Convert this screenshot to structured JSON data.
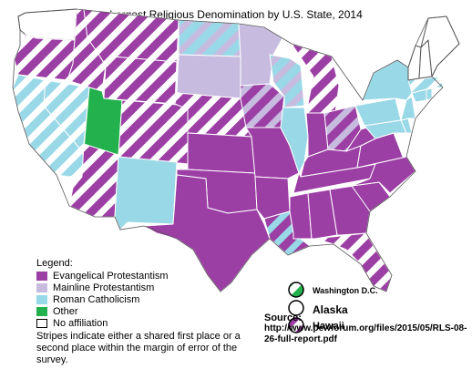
{
  "title": "Largest Religious Denomination by U.S. State, 2014",
  "colors": {
    "evangelical": "#9c3fa5",
    "mainline": "#c7bbe0",
    "catholic": "#99d8e7",
    "other": "#23b14d",
    "none": "#ffffff",
    "border": "#ffffff",
    "outline": "#555555"
  },
  "legend": {
    "heading": "Legend:",
    "items": [
      {
        "key": "evangelical",
        "label": "Evangelical Protestantism"
      },
      {
        "key": "mainline",
        "label": "Mainline Protestantism"
      },
      {
        "key": "catholic",
        "label": "Roman Catholicism"
      },
      {
        "key": "other",
        "label": "Other"
      },
      {
        "key": "none",
        "label": "No affiliation"
      }
    ]
  },
  "note": "Stripes indicate either a shared first place or a second place within the margin of error of the survey.",
  "insets": [
    {
      "label": "Washington D.C.",
      "fill": "other",
      "stripe": "none",
      "bold": true
    },
    {
      "label": "Alaska",
      "fill": "none",
      "stripe": null
    },
    {
      "label": "Hawaii",
      "fill": "evangelical",
      "stripe": "none"
    }
  ],
  "source": {
    "heading": "Source:",
    "url": "http://www.pewforum.org/files/2015/05/RLS-08-26-full-report.pdf"
  },
  "states": [
    {
      "name": "WA",
      "fill": "none",
      "stripe": null
    },
    {
      "name": "OR",
      "fill": "evangelical",
      "stripe": "none"
    },
    {
      "name": "CA",
      "fill": "catholic",
      "stripe": "none"
    },
    {
      "name": "NV",
      "fill": "catholic",
      "stripe": "none"
    },
    {
      "name": "ID",
      "fill": "evangelical",
      "stripe": "none"
    },
    {
      "name": "MT",
      "fill": "evangelical",
      "stripe": "none"
    },
    {
      "name": "WY",
      "fill": "evangelical",
      "stripe": "none"
    },
    {
      "name": "UT",
      "fill": "other",
      "stripe": null
    },
    {
      "name": "CO",
      "fill": "evangelical",
      "stripe": "none"
    },
    {
      "name": "AZ",
      "fill": "evangelical",
      "stripe": "none"
    },
    {
      "name": "NM",
      "fill": "catholic",
      "stripe": null
    },
    {
      "name": "ND",
      "fill": "catholic",
      "stripe": "mainline"
    },
    {
      "name": "SD",
      "fill": "mainline",
      "stripe": null
    },
    {
      "name": "NE",
      "fill": "evangelical",
      "stripe": "none"
    },
    {
      "name": "KS",
      "fill": "evangelical",
      "stripe": null
    },
    {
      "name": "OK",
      "fill": "evangelical",
      "stripe": null
    },
    {
      "name": "TX",
      "fill": "evangelical",
      "stripe": null
    },
    {
      "name": "MN",
      "fill": "mainline",
      "stripe": null
    },
    {
      "name": "IA",
      "fill": "evangelical",
      "stripe": "mainline"
    },
    {
      "name": "MO",
      "fill": "evangelical",
      "stripe": null
    },
    {
      "name": "AR",
      "fill": "evangelical",
      "stripe": null
    },
    {
      "name": "LA",
      "fill": "evangelical",
      "stripe": "catholic"
    },
    {
      "name": "WI",
      "fill": "catholic",
      "stripe": "mainline"
    },
    {
      "name": "IL",
      "fill": "catholic",
      "stripe": null
    },
    {
      "name": "MI",
      "fill": "evangelical",
      "stripe": "none"
    },
    {
      "name": "IN",
      "fill": "evangelical",
      "stripe": null
    },
    {
      "name": "OH",
      "fill": "evangelical",
      "stripe": "mainline"
    },
    {
      "name": "KY",
      "fill": "evangelical",
      "stripe": null
    },
    {
      "name": "TN",
      "fill": "evangelical",
      "stripe": null
    },
    {
      "name": "MS",
      "fill": "evangelical",
      "stripe": null
    },
    {
      "name": "AL",
      "fill": "evangelical",
      "stripe": null
    },
    {
      "name": "GA",
      "fill": "evangelical",
      "stripe": null
    },
    {
      "name": "FL",
      "fill": "evangelical",
      "stripe": "none"
    },
    {
      "name": "SC",
      "fill": "evangelical",
      "stripe": null
    },
    {
      "name": "NC",
      "fill": "evangelical",
      "stripe": null
    },
    {
      "name": "VA",
      "fill": "evangelical",
      "stripe": null
    },
    {
      "name": "WV",
      "fill": "evangelical",
      "stripe": null
    },
    {
      "name": "PA",
      "fill": "catholic",
      "stripe": null
    },
    {
      "name": "NY",
      "fill": "catholic",
      "stripe": null
    },
    {
      "name": "MD",
      "fill": "catholic",
      "stripe": null
    },
    {
      "name": "DE",
      "fill": "catholic",
      "stripe": null
    },
    {
      "name": "NJ",
      "fill": "catholic",
      "stripe": null
    },
    {
      "name": "CT",
      "fill": "catholic",
      "stripe": null
    },
    {
      "name": "RI",
      "fill": "catholic",
      "stripe": null
    },
    {
      "name": "MA",
      "fill": "catholic",
      "stripe": "none"
    },
    {
      "name": "VT",
      "fill": "none",
      "stripe": null
    },
    {
      "name": "NH",
      "fill": "none",
      "stripe": null
    },
    {
      "name": "ME",
      "fill": "none",
      "stripe": null
    }
  ]
}
